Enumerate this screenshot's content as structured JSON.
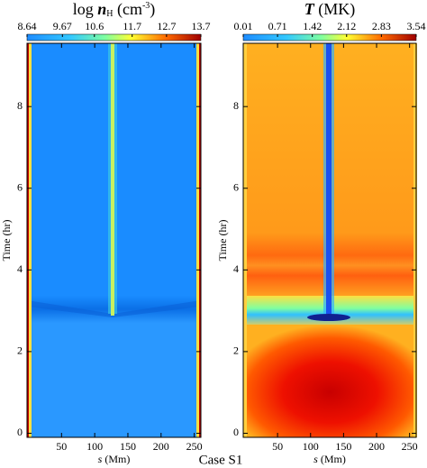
{
  "chart_data": [
    {
      "type": "heatmap",
      "title": [
        "log ",
        "n",
        "H",
        " (cm",
        "-3",
        ")"
      ],
      "colorbar_lim": [
        8.64,
        13.7
      ],
      "colorbar_ticks": [
        8.64,
        9.67,
        10.6,
        11.7,
        12.7,
        13.7
      ],
      "xlabel": [
        "s",
        " (Mm)"
      ],
      "ylabel": "Time (hr)",
      "xlim": [
        -2,
        260
      ],
      "xticks": [
        50,
        100,
        150,
        200,
        250
      ],
      "ylim": [
        -0.1,
        9.55
      ],
      "yticks": [
        0,
        2,
        4,
        6,
        8
      ]
    },
    {
      "type": "heatmap",
      "title": [
        "T",
        " (MK)"
      ],
      "colorbar_lim": [
        0.01,
        3.54
      ],
      "colorbar_ticks": [
        0.01,
        0.71,
        1.42,
        2.12,
        2.83,
        3.54
      ],
      "xlabel": [
        "s",
        " (Mm)"
      ],
      "ylabel": "Time (hr)",
      "xlim": [
        -2,
        260
      ],
      "xticks": [
        50,
        100,
        150,
        200,
        250
      ],
      "ylim": [
        -0.1,
        9.55
      ],
      "yticks": [
        0,
        2,
        4,
        6,
        8
      ]
    }
  ],
  "caption": "Case S1"
}
